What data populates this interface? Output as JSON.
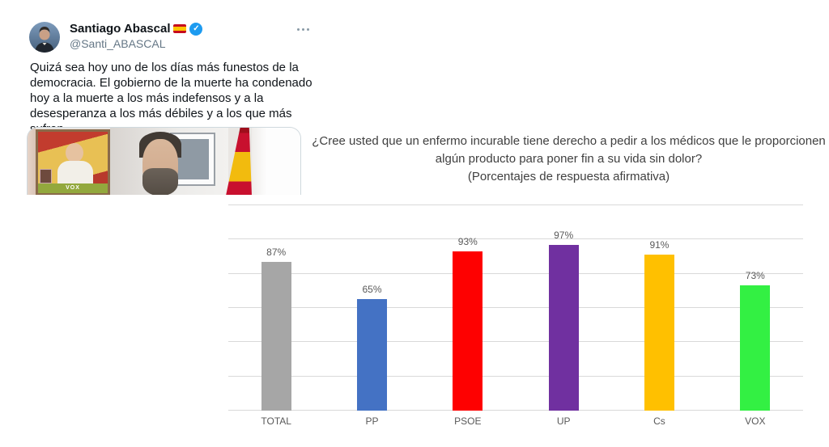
{
  "tweet": {
    "author_name": "Santiago Abascal",
    "handle": "@Santi_ABASCAL",
    "text": "Quizá sea hoy uno de los días más funestos de la democracia. El gobierno de la muerte ha condenado hoy a la muerte a los más indefensos y a la desesperanza a los más débiles y a los que más sufren.",
    "icons": {
      "verified_badge": "✓",
      "spain_flag": "es-flag",
      "more_options": "more-dots"
    },
    "media": {
      "poster_text": "VOX"
    }
  },
  "chart_data": {
    "type": "bar",
    "title": "¿Cree usted que un enfermo incurable tiene derecho a pedir a los médicos que le proporcionen algún producto para poner fin a su vida sin dolor?",
    "subtitle": "(Porcentajes de respuesta afirmativa)",
    "categories": [
      "TOTAL",
      "PP",
      "PSOE",
      "UP",
      "Cs",
      "VOX"
    ],
    "values": [
      87,
      65,
      93,
      97,
      91,
      73
    ],
    "value_labels": [
      "87%",
      "65%",
      "93%",
      "97%",
      "91%",
      "73%"
    ],
    "bar_colors": [
      "#a6a6a6",
      "#4472c4",
      "#fe0101",
      "#7030a0",
      "#ffc000",
      "#33f043"
    ],
    "ylim": [
      0,
      120
    ],
    "gridline_step": 20,
    "grid": true,
    "legend": false,
    "label_color": "#595959",
    "gridline_color": "#d9d9d9",
    "title_color": "#404040"
  }
}
